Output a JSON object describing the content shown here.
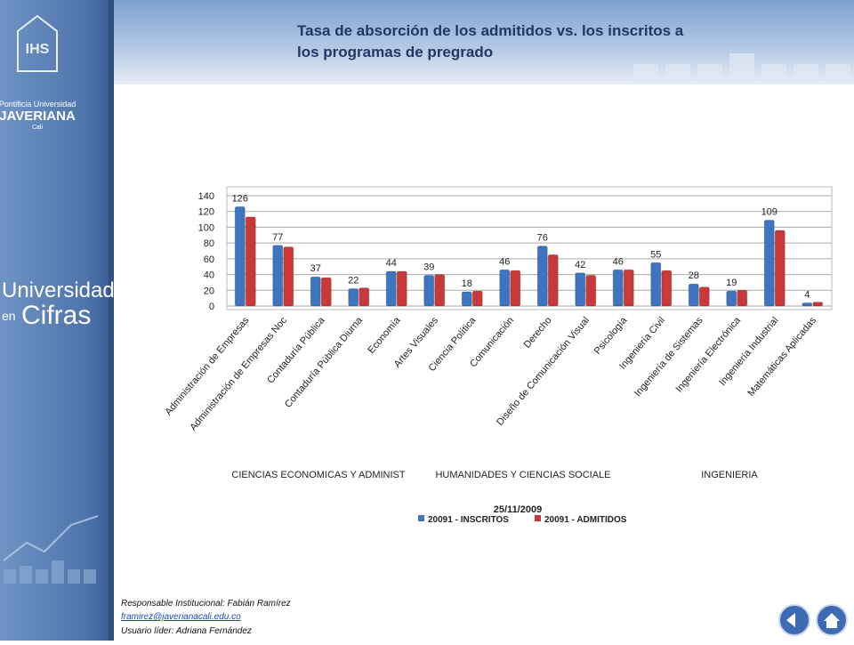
{
  "sidebar": {
    "line1": "Pontificia Universidad",
    "line2": "JAVERIANA",
    "line3": "Cali",
    "brand1": "Universidad",
    "brand2": "en",
    "brand3": "Cifras"
  },
  "footer": {
    "responsible": "Responsable Institucional: Fabián Ramírez",
    "email": "framirez@javerianacali.edu.co",
    "leader": "Usuario líder: Adriana Fernández"
  },
  "chart_data": {
    "type": "bar",
    "title": "Tasa de absorción de los admitidos vs. los inscritos a los programas de pregrado",
    "categories": [
      "Administración de Empresas",
      "Administración de Empresas Noc",
      "Contaduría Pública",
      "Contaduría Pública Diurna",
      "Economía",
      "Artes Visuales",
      "Ciencia Política",
      "Comunicación",
      "Derecho",
      "Diseño de Comunicación Visual",
      "Psicología",
      "Ingeniería Civil",
      "Ingeniería de Sistemas",
      "Ingeniería Electrónica",
      "Ingeniería Industrial",
      "Matemáticas Aplicadas"
    ],
    "group_labels": [
      "CIENCIAS ECONOMICAS Y ADMINIST",
      "HUMANIDADES Y CIENCIAS SOCIALE",
      "INGENIERIA"
    ],
    "date_label": "25/11/2009",
    "series": [
      {
        "name": "20091 - INSCRITOS",
        "color": "#3f74c0",
        "values": [
          126,
          77,
          37,
          22,
          44,
          39,
          18,
          46,
          76,
          42,
          46,
          55,
          28,
          19,
          109,
          4
        ]
      },
      {
        "name": "20091 - ADMITIDOS",
        "color": "#c9393a",
        "values": [
          113,
          75,
          36,
          23,
          44,
          40,
          19,
          45,
          65,
          39,
          46,
          45,
          24,
          20,
          96,
          5
        ]
      }
    ],
    "label_series": 0,
    "ylim": [
      0,
      140
    ],
    "yticks": [
      0,
      20,
      40,
      60,
      80,
      100,
      120,
      140
    ],
    "grid": true,
    "legend": "bottom"
  }
}
